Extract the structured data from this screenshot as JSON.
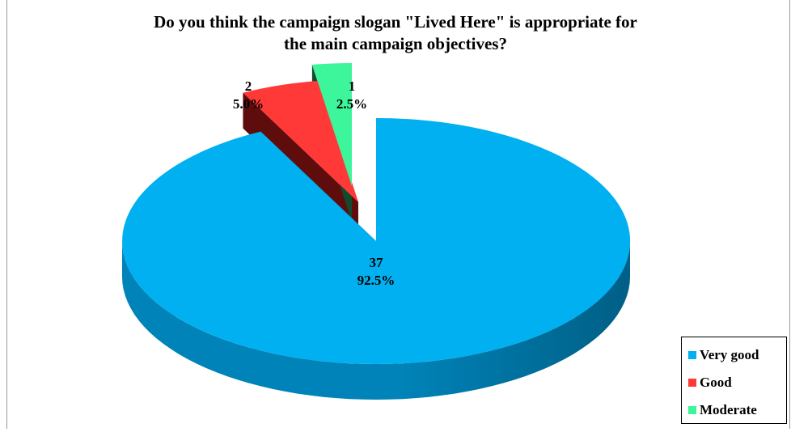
{
  "chart_data": {
    "type": "pie",
    "title_line1": "Do you think the campaign slogan \"Lived Here\" is appropriate for",
    "title_line2": "the main campaign objectives?",
    "slices": [
      {
        "name": "Very good",
        "value": 37,
        "percent": "92.5%",
        "count_label": "37",
        "color": "#00B0F0",
        "side_color": "#0083B8",
        "dark_color": "#005F86"
      },
      {
        "name": "Good",
        "value": 2,
        "percent": "5.0%",
        "count_label": "2",
        "color": "#FF3838",
        "side_color": "#8E1414",
        "dark_color": "#5E0C0C"
      },
      {
        "name": "Moderate",
        "value": 1,
        "percent": "2.5%",
        "count_label": "1",
        "color": "#3DF59A",
        "side_color": "#1E6E44",
        "dark_color": "#124A2D"
      }
    ],
    "legend_position": "bottom-right"
  }
}
